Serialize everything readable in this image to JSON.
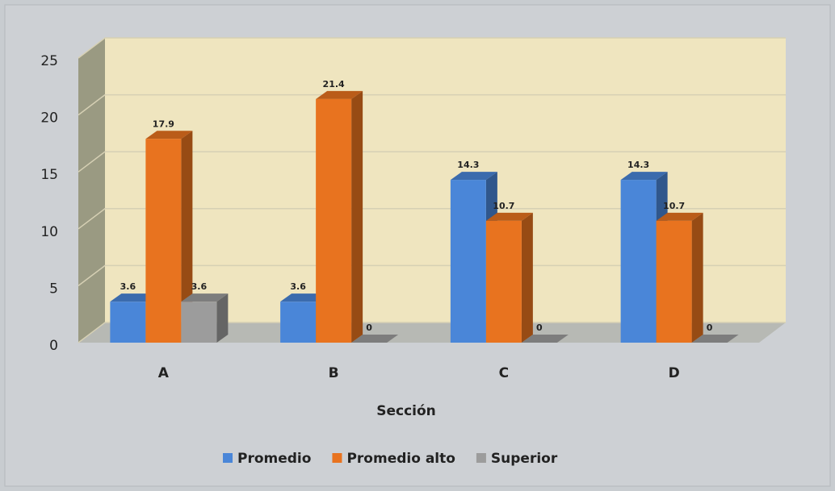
{
  "chart_data": {
    "type": "bar3d",
    "x_label": "Sección",
    "categories": [
      "A",
      "B",
      "C",
      "D"
    ],
    "series": [
      {
        "name": "Promedio",
        "color": "#4a86d8",
        "values": [
          3.6,
          3.6,
          14.3,
          14.3
        ]
      },
      {
        "name": "Promedio alto",
        "color": "#e8731f",
        "values": [
          17.9,
          21.4,
          10.7,
          10.7
        ]
      },
      {
        "name": "Superior",
        "color": "#9c9c9c",
        "values": [
          3.6,
          0,
          0,
          0
        ]
      }
    ],
    "ylim": [
      0,
      25
    ],
    "yticks": [
      0,
      5,
      10,
      15,
      20,
      25
    ],
    "grid": true,
    "legend": "bottom"
  }
}
